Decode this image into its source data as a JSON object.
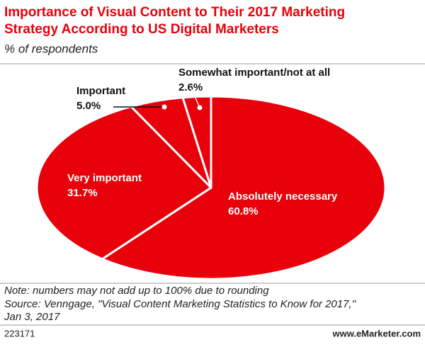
{
  "chart_data": {
    "type": "pie",
    "title": "Importance of Visual Content to Their 2017 Marketing",
    "title_line2": "Strategy According to US Digital Marketers",
    "subtitle": "% of respondents",
    "categories": [
      "Absolutely necessary",
      "Very important",
      "Important",
      "Somewhat important/not at all"
    ],
    "values": [
      60.8,
      31.7,
      5.0,
      2.6
    ],
    "value_labels": [
      "60.8%",
      "31.7%",
      "5.0%",
      "2.6%"
    ],
    "color": "#e8000b",
    "note": "Note: numbers may not add up to 100% due to rounding",
    "source": "Source: Venngage, \"Visual Content Marketing Statistics to Know for 2017,\"",
    "source_line2": "Jan 3, 2017",
    "id": "223171",
    "site": "www.eMarketer.com"
  }
}
